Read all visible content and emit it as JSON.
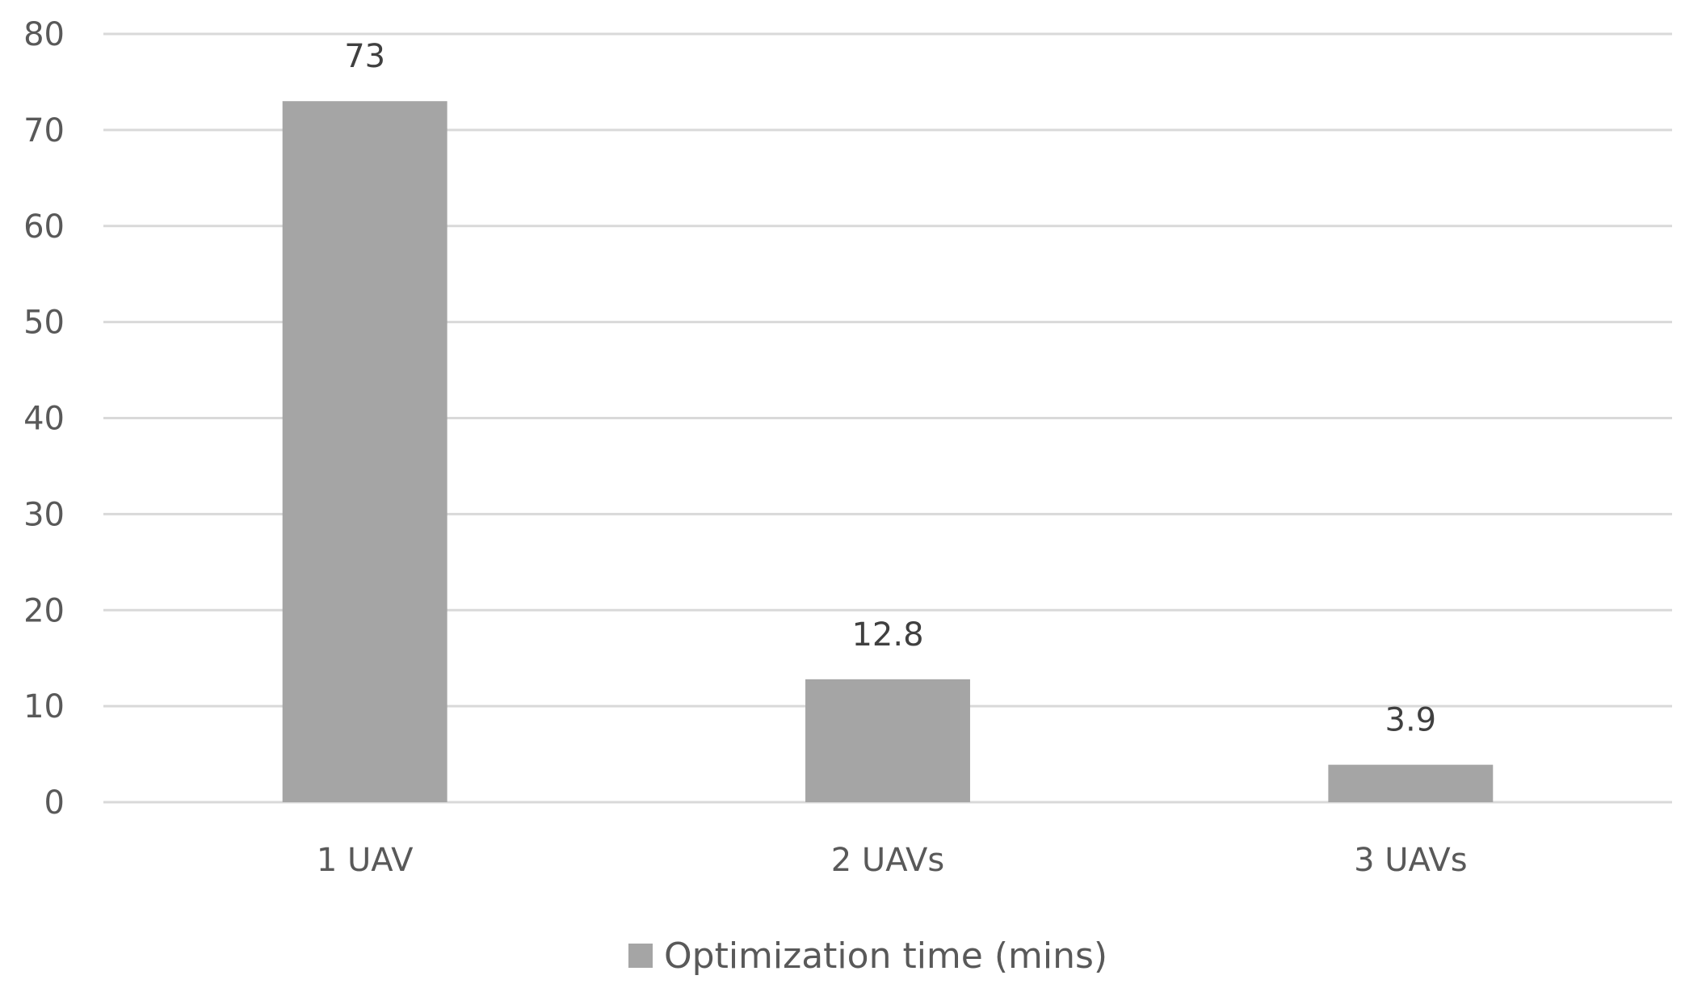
{
  "chart_data": {
    "type": "bar",
    "title": "",
    "xlabel": "",
    "ylabel": "",
    "categories": [
      "1 UAV",
      "2 UAVs",
      "3 UAVs"
    ],
    "series": [
      {
        "name": "Optimization time (mins)",
        "values": [
          73,
          12.8,
          3.9
        ],
        "color": "#a5a5a5"
      }
    ],
    "ylim": [
      0,
      80
    ],
    "yticks": [
      0,
      10,
      20,
      30,
      40,
      50,
      60,
      70,
      80
    ],
    "grid": true,
    "legend_position": "bottom",
    "data_labels": true
  }
}
